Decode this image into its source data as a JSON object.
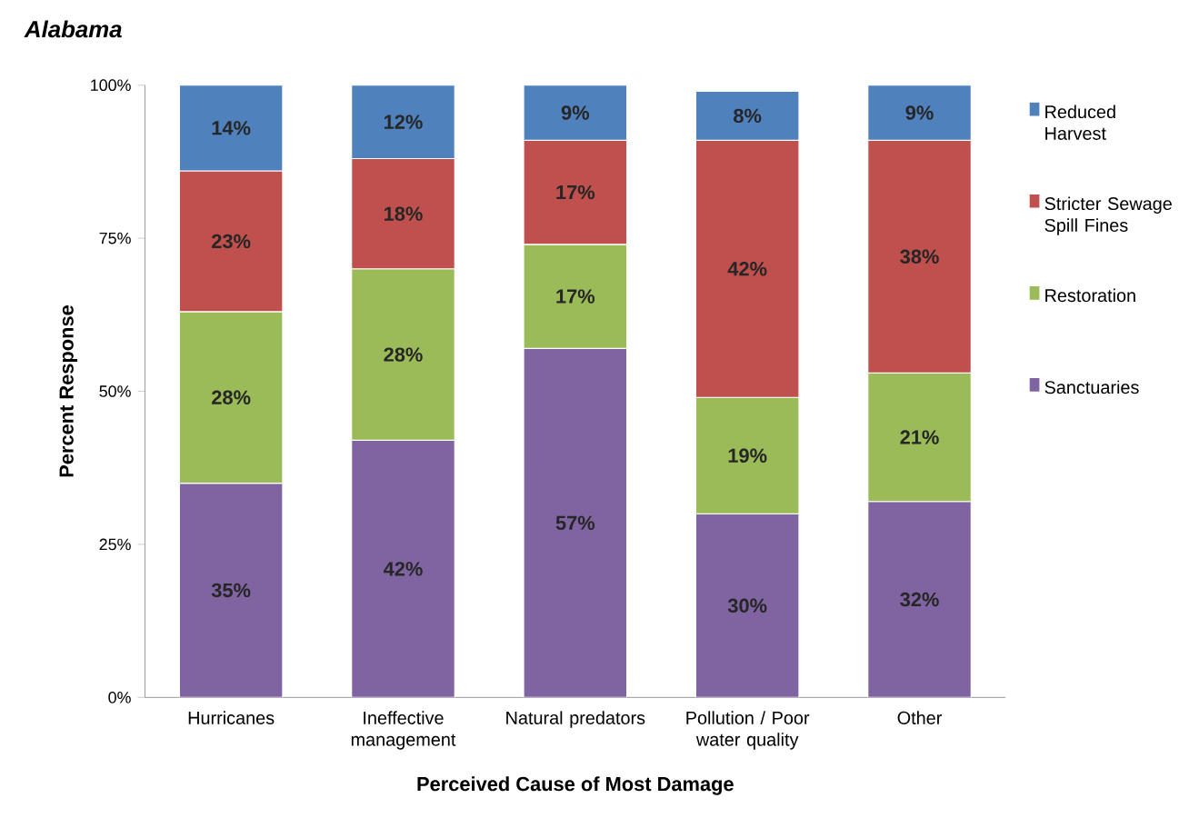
{
  "chart_data": {
    "type": "bar",
    "stacked": true,
    "title": "Alabama",
    "xlabel": "Perceived Cause of Most Damage",
    "ylabel": "Percent Response",
    "categories": [
      "Hurricanes",
      "Ineffective management",
      "Natural predators",
      "Pollution / Poor water quality",
      "Other"
    ],
    "series": [
      {
        "name": "Sanctuaries",
        "color": "#8064a2",
        "values": [
          35,
          42,
          57,
          30,
          32
        ],
        "value_labels": [
          "35%",
          "42%",
          "57%",
          "30%",
          "32%"
        ]
      },
      {
        "name": "Restoration",
        "color": "#9bbb59",
        "values": [
          28,
          28,
          17,
          19,
          21
        ],
        "value_labels": [
          "28%",
          "28%",
          "17%",
          "19%",
          "21%"
        ]
      },
      {
        "name": "Stricter Sewage Spill Fines",
        "color": "#c0504d",
        "values": [
          23,
          18,
          17,
          42,
          38
        ],
        "value_labels": [
          "23%",
          "18%",
          "17%",
          "42%",
          "38%"
        ]
      },
      {
        "name": "Reduced Harvest",
        "color": "#4f81bd",
        "values": [
          14,
          12,
          9,
          8,
          9
        ],
        "value_labels": [
          "14%",
          "12%",
          "9%",
          "8%",
          "9%"
        ]
      }
    ],
    "ylim": [
      0,
      100
    ],
    "yticks": [
      {
        "value": 0,
        "label": "0%"
      },
      {
        "value": 25,
        "label": "25%"
      },
      {
        "value": 50,
        "label": "50%"
      },
      {
        "value": 75,
        "label": "75%"
      },
      {
        "value": 100,
        "label": "100%"
      }
    ],
    "grid": false,
    "legend": "right"
  }
}
